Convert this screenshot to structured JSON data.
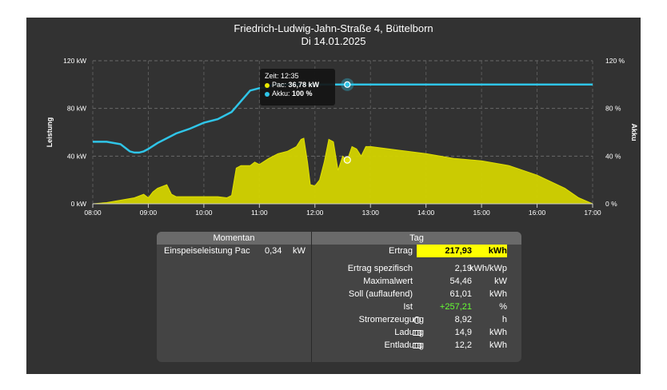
{
  "header": {
    "title": "Friedrich-Ludwig-Jahn-Straße 4, Büttelborn",
    "date": "Di 14.01.2025"
  },
  "chart_data": {
    "type": "area",
    "title": "Friedrich-Ludwig-Jahn-Straße 4, Büttelborn",
    "subtitle": "Di 14.01.2025",
    "y_left": {
      "label": "Leistung",
      "ticks": [
        "0 kW",
        "40 kW",
        "80 kW",
        "120 kW"
      ],
      "range": [
        0,
        120
      ]
    },
    "y_right": {
      "label": "Akku",
      "ticks": [
        "0 %",
        "40 %",
        "80 %",
        "120 %"
      ],
      "range": [
        0,
        120
      ]
    },
    "x_ticks": [
      "08:00",
      "09:00",
      "10:00",
      "11:00",
      "12:00",
      "13:00",
      "14:00",
      "15:00",
      "16:00",
      "17:00"
    ],
    "grid": true,
    "series": [
      {
        "name": "Pac",
        "color": "#d4d400",
        "type": "area",
        "x": [
          "08:00",
          "08:15",
          "08:30",
          "08:45",
          "08:55",
          "09:00",
          "09:05",
          "09:10",
          "09:20",
          "09:25",
          "09:30",
          "09:35",
          "09:45",
          "10:00",
          "10:15",
          "10:25",
          "10:30",
          "10:35",
          "10:40",
          "10:50",
          "10:55",
          "11:00",
          "11:10",
          "11:15",
          "11:20",
          "11:30",
          "11:40",
          "11:45",
          "11:48",
          "11:52",
          "11:55",
          "12:00",
          "12:05",
          "12:10",
          "12:15",
          "12:20",
          "12:25",
          "12:30",
          "12:35",
          "12:40",
          "12:45",
          "12:50",
          "12:55",
          "13:00",
          "13:30",
          "14:00",
          "14:30",
          "15:00",
          "15:30",
          "16:00",
          "16:30",
          "16:45",
          "17:00"
        ],
        "values": [
          0,
          1,
          3,
          5,
          8,
          5,
          10,
          13,
          16,
          8,
          6,
          6,
          6,
          6,
          6,
          5,
          7,
          30,
          32,
          32,
          35,
          33,
          38,
          40,
          42,
          44,
          48,
          54,
          55,
          35,
          16,
          15,
          20,
          35,
          54,
          52,
          28,
          40,
          36.78,
          48,
          46,
          40,
          48,
          48,
          45,
          42,
          38,
          36,
          32,
          24,
          13,
          5,
          0
        ]
      },
      {
        "name": "Akku",
        "color": "#2fc5e8",
        "type": "line",
        "x": [
          "08:00",
          "08:15",
          "08:30",
          "08:40",
          "08:45",
          "08:50",
          "08:55",
          "09:00",
          "09:10",
          "09:20",
          "09:30",
          "09:45",
          "10:00",
          "10:15",
          "10:30",
          "10:40",
          "10:50",
          "11:00",
          "11:10",
          "11:15",
          "12:00",
          "12:30",
          "13:00",
          "14:00",
          "15:00",
          "16:00",
          "17:00"
        ],
        "values": [
          52,
          52,
          50,
          44,
          43,
          43,
          44,
          46,
          51,
          55,
          59,
          63,
          68,
          71,
          77,
          86,
          95,
          97,
          98,
          100,
          100,
          100,
          100,
          100,
          100,
          100,
          100
        ]
      }
    ],
    "tooltip": {
      "zeit_label": "Zeit: 12:35",
      "pac_label": "Pac:",
      "pac_value": "36,78 kW",
      "akku_label": "Akku:",
      "akku_value": "100 %"
    }
  },
  "momentan": {
    "header": "Momentan",
    "rows": [
      {
        "label": "Einspeiseleistung Pac",
        "value": "0,34",
        "unit": "kW"
      }
    ]
  },
  "tag": {
    "header": "Tag",
    "rows": [
      {
        "label": "Ertrag",
        "value": "217,93",
        "unit": "kWh"
      },
      {
        "label": "Ertrag spezifisch",
        "value": "2,19",
        "unit": "kWh/kWp"
      },
      {
        "label": "Maximalwert",
        "value": "54,46",
        "unit": "kW"
      },
      {
        "label": "Soll (auflaufend)",
        "value": "61,01",
        "unit": "kWh"
      },
      {
        "label": "Ist",
        "value": "+257,21",
        "unit": "%"
      },
      {
        "label": "Stromerzeugung",
        "value": "8,92",
        "unit": "h"
      },
      {
        "label": "Ladung",
        "value": "14,9",
        "unit": "kWh"
      },
      {
        "label": "Entladung",
        "value": "12,2",
        "unit": "kWh"
      }
    ]
  }
}
